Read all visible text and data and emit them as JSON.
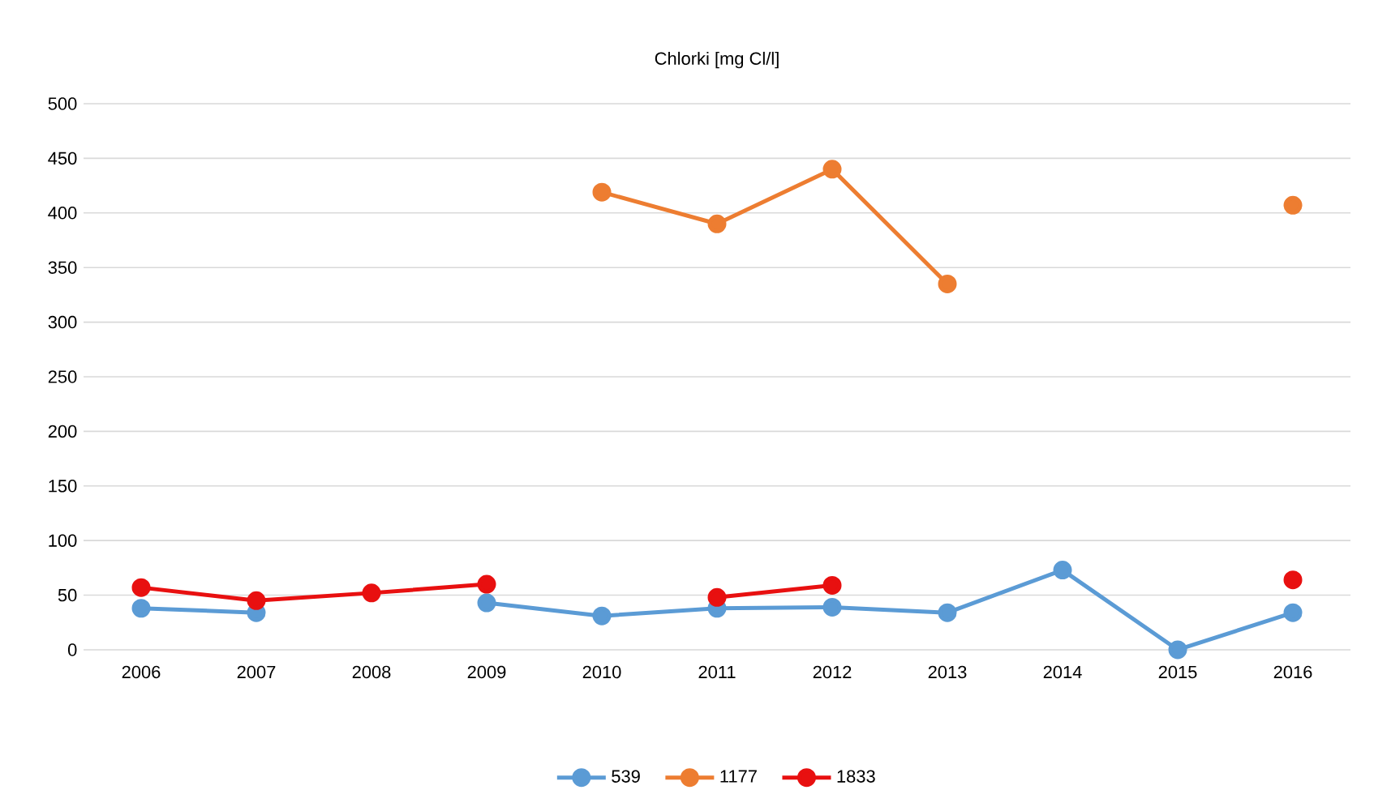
{
  "chart_data": {
    "type": "line",
    "title": "Chlorki  [mg Cl/l]",
    "categories": [
      "2006",
      "2007",
      "2008",
      "2009",
      "2010",
      "2011",
      "2012",
      "2013",
      "2014",
      "2015",
      "2016"
    ],
    "series": [
      {
        "name": "539",
        "color": "#5b9bd5",
        "values": [
          38,
          34,
          null,
          43,
          31,
          38,
          39,
          34,
          73,
          0,
          34
        ]
      },
      {
        "name": "1177",
        "color": "#ed7d31",
        "values": [
          null,
          null,
          null,
          null,
          419,
          390,
          440,
          335,
          null,
          null,
          407
        ]
      },
      {
        "name": "1833",
        "color": "#e81010",
        "values": [
          57,
          45,
          52,
          60,
          null,
          48,
          59,
          null,
          null,
          null,
          64
        ]
      }
    ],
    "ylim": [
      0,
      500
    ],
    "yticks": [
      0,
      50,
      100,
      150,
      200,
      250,
      300,
      350,
      400,
      450,
      500
    ],
    "grid": "y",
    "legend": "bottom",
    "marker": "circle",
    "line_style": "solid"
  }
}
